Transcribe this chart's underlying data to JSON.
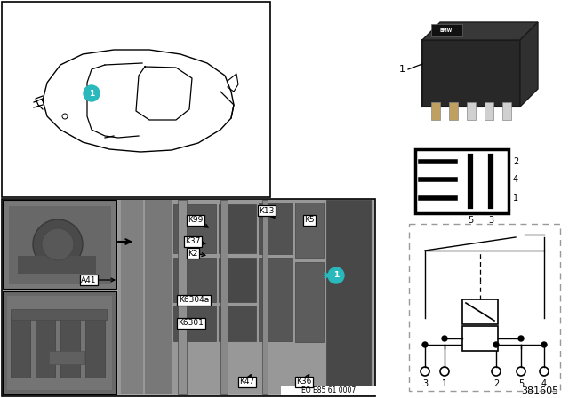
{
  "bg": "#ffffff",
  "teal": "#29B8BC",
  "black": "#000000",
  "white": "#ffffff",
  "gray_main": "#a8a8a8",
  "gray_dark": "#606060",
  "gray_med": "#888888",
  "gray_light": "#c0c0c0",
  "relay_dark": "#1c1c1c",
  "part_labels": [
    "K99",
    "K37",
    "K2",
    "A41",
    "K6304a",
    "K6301",
    "K13",
    "K5",
    "K47",
    "K36"
  ],
  "pin_labels_side": [
    "2",
    "4",
    "1"
  ],
  "pin_center": "5",
  "pin_right": "3",
  "pin_labels_bottom": [
    "3",
    "1",
    "2",
    "5",
    "4"
  ],
  "footer_code": "EO E85 61 0007",
  "part_number": "381605",
  "label_1": "1"
}
